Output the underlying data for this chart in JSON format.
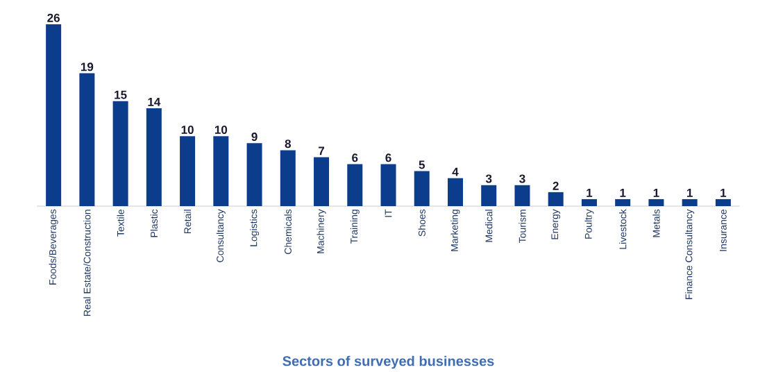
{
  "chart_data": {
    "type": "bar",
    "xlabel": "Sectors of surveyed businesses",
    "categories": [
      "Foods/Beverages",
      "Real Estate/Construction",
      "Textile",
      "Plastic",
      "Retail",
      "Consultancy",
      "Logistics",
      "Chemicals",
      "Machinery",
      "Training",
      "IT",
      "Shoes",
      "Marketing",
      "Medical",
      "Tourism",
      "Energy",
      "Poultry",
      "Livestock",
      "Metals",
      "Finance Consultancy",
      "Insurance"
    ],
    "values": [
      26,
      19,
      15,
      14,
      10,
      10,
      9,
      8,
      7,
      6,
      6,
      5,
      4,
      3,
      3,
      2,
      1,
      1,
      1,
      1,
      1
    ],
    "color": "#0b3d8c",
    "data_labels": true,
    "tick_labels": "x"
  }
}
